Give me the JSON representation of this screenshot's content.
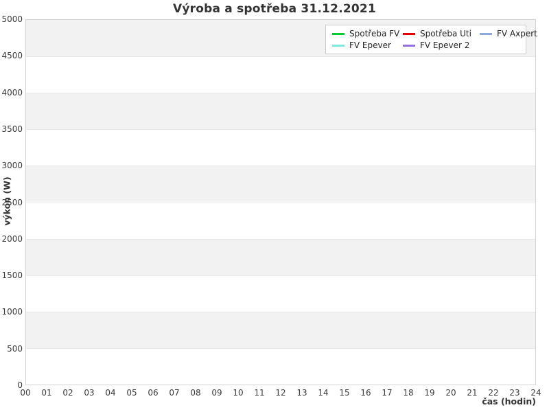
{
  "chart_data": {
    "type": "line",
    "title": "Výroba a spotřeba 31.12.2021",
    "xlabel": "čas (hodin)",
    "ylabel": "výkon (W)",
    "xlim": [
      0,
      24
    ],
    "ylim": [
      0,
      5000
    ],
    "xticks": [
      "00",
      "01",
      "02",
      "03",
      "04",
      "05",
      "06",
      "07",
      "08",
      "09",
      "10",
      "11",
      "12",
      "13",
      "14",
      "15",
      "16",
      "17",
      "18",
      "19",
      "20",
      "21",
      "22",
      "23",
      "24"
    ],
    "yticks": [
      0,
      500,
      1000,
      1500,
      2000,
      2500,
      3000,
      3500,
      4000,
      4500,
      5000
    ],
    "grid": "horizontal alternating bands every 500, no vertical gridlines",
    "legend_position": "top-right inside plot",
    "band_colors": {
      "odd": "#f2f2f2",
      "even": "#ffffff"
    },
    "series": [
      {
        "name": "Spotřeba FV",
        "color": "#00cc33",
        "values": []
      },
      {
        "name": "Spotřeba Uti",
        "color": "#e80000",
        "values": []
      },
      {
        "name": "FV Axpert",
        "color": "#8cabd8",
        "values": []
      },
      {
        "name": "FV Epever",
        "color": "#7de9e1",
        "values": []
      },
      {
        "name": "FV Epever 2",
        "color": "#9370db",
        "values": []
      }
    ]
  }
}
